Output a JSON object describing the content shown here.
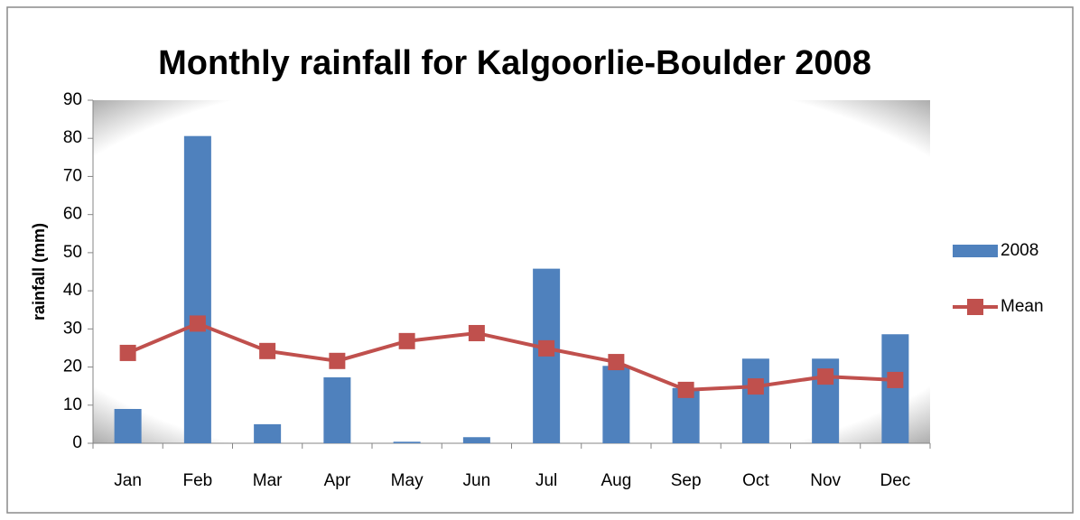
{
  "chart_data": {
    "type": "bar",
    "title": "Monthly rainfall for Kalgoorlie-Boulder 2008",
    "y_label": "rainfall (mm)",
    "categories": [
      "Jan",
      "Feb",
      "Mar",
      "Apr",
      "May",
      "Jun",
      "Jul",
      "Aug",
      "Sep",
      "Oct",
      "Nov",
      "Dec"
    ],
    "series": [
      {
        "name": "2008",
        "type": "bar",
        "color": "#4f81bd",
        "values": [
          9.0,
          80.6,
          5.0,
          17.3,
          0.4,
          1.6,
          45.8,
          20.3,
          14.5,
          22.2,
          22.2,
          28.6
        ]
      },
      {
        "name": "Mean",
        "type": "line",
        "color": "#c0504d",
        "values": [
          23.7,
          31.4,
          24.2,
          21.6,
          26.8,
          28.9,
          24.9,
          21.3,
          14.0,
          14.9,
          17.5,
          16.6
        ]
      }
    ],
    "ylim": [
      0,
      90
    ],
    "yticks": [
      0,
      10,
      20,
      30,
      40,
      50,
      60,
      70,
      80,
      90
    ],
    "legend": "right"
  }
}
